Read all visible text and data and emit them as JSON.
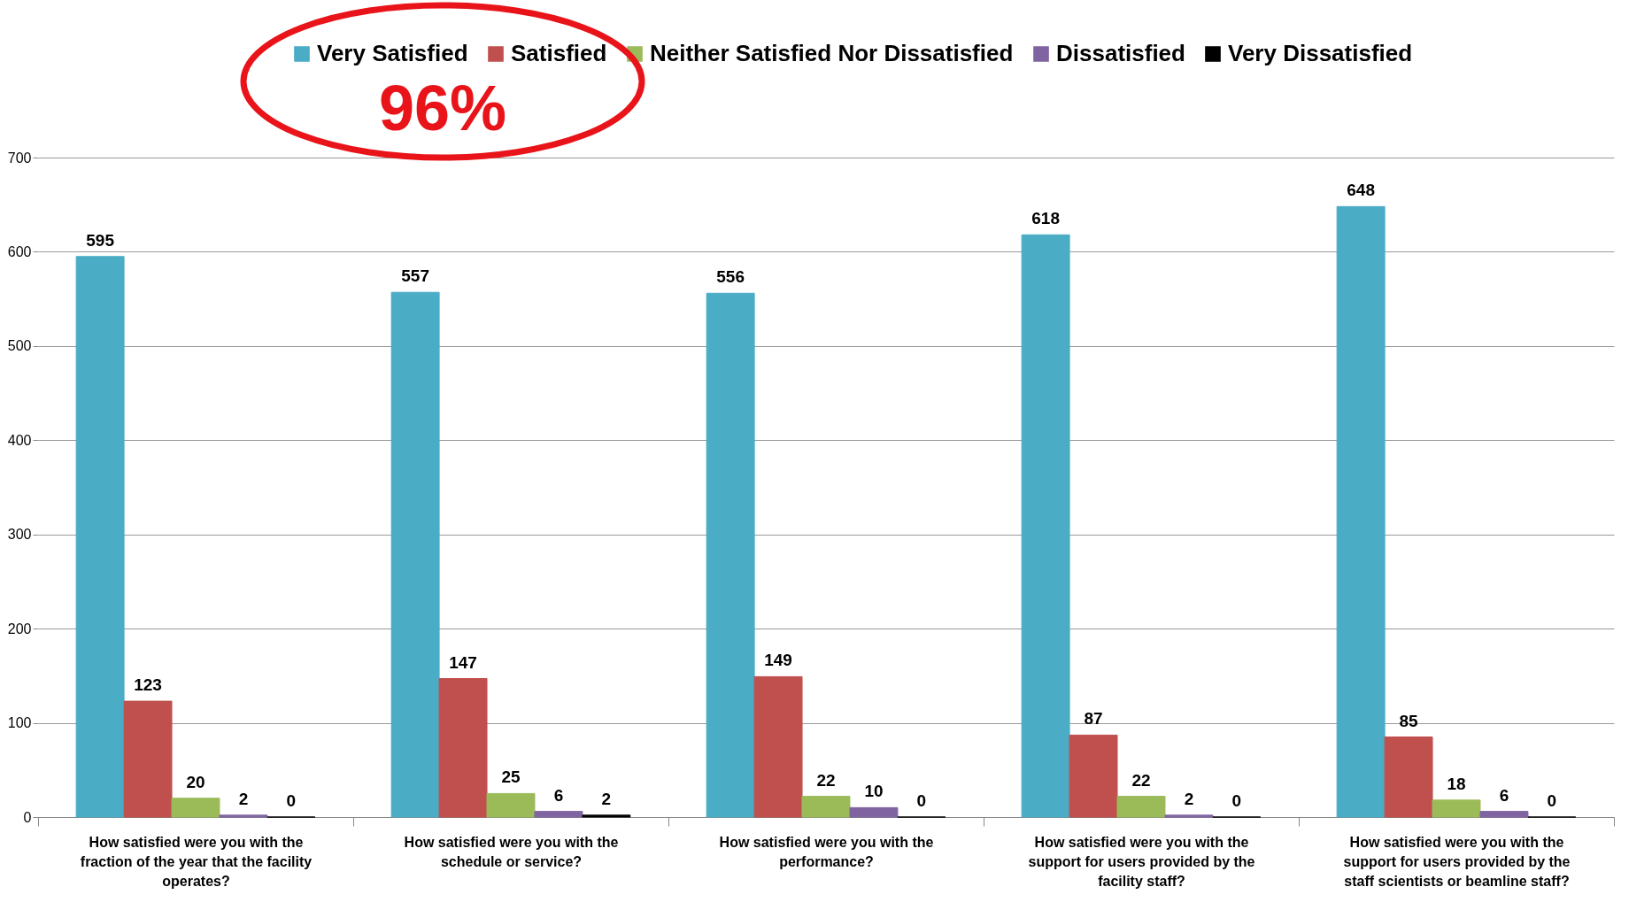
{
  "chart_data": {
    "type": "bar",
    "categories": [
      "How satisfied were you with the fraction of the year that the facility operates?",
      "How satisfied were you with the schedule or service?",
      "How satisfied were you with the performance?",
      "How satisfied were you with the support for users provided by the facility staff?",
      "How satisfied were you with the support for users provided by the staff scientists or beamline staff?"
    ],
    "series": [
      {
        "name": "Very Satisfied",
        "color": "#4bacc6",
        "values": [
          595,
          557,
          556,
          618,
          648
        ]
      },
      {
        "name": "Satisfied",
        "color": "#c0504d",
        "values": [
          123,
          147,
          149,
          87,
          85
        ]
      },
      {
        "name": "Neither Satisfied Nor Dissatisfied",
        "color": "#9bbb59",
        "values": [
          20,
          25,
          22,
          22,
          18
        ]
      },
      {
        "name": "Dissatisfied",
        "color": "#8064a2",
        "values": [
          2,
          6,
          10,
          2,
          6
        ]
      },
      {
        "name": "Very Dissatisfied",
        "color": "#000000",
        "values": [
          0,
          2,
          0,
          0,
          0
        ]
      }
    ],
    "ylim": [
      0,
      700
    ],
    "yticks": [
      0,
      100,
      200,
      300,
      400,
      500,
      600,
      700
    ],
    "grid": "y",
    "legend": "top",
    "data_labels": true,
    "annotations": [
      "96%"
    ]
  }
}
